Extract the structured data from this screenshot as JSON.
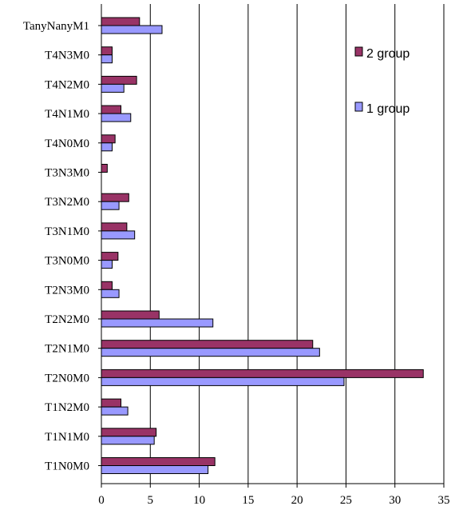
{
  "chart_data": {
    "type": "bar",
    "orientation": "horizontal",
    "categories": [
      "TanyNanyM1",
      "T4N3M0",
      "T4N2M0",
      "T4N1M0",
      "T4N0M0",
      "T3N3M0",
      "T3N2M0",
      "T3N1M0",
      "T3N0M0",
      "T2N3M0",
      "T2N2M0",
      "T2N1M0",
      "T2N0M0",
      "T1N2M0",
      "T1N1M0",
      "T1N0M0"
    ],
    "series": [
      {
        "name": "2 group",
        "color": "#993366",
        "values": [
          3.9,
          1.1,
          3.6,
          2.0,
          1.4,
          0.6,
          2.8,
          2.6,
          1.7,
          1.1,
          5.9,
          21.6,
          32.9,
          2.0,
          5.6,
          11.6
        ]
      },
      {
        "name": "1 group",
        "color": "#9999ff",
        "values": [
          6.2,
          1.1,
          2.3,
          3.0,
          1.1,
          0,
          1.8,
          3.4,
          1.1,
          1.8,
          11.4,
          22.3,
          24.8,
          2.7,
          5.4,
          10.9
        ]
      }
    ],
    "xlim": [
      0,
      35
    ],
    "xticks": [
      "0",
      "5",
      "10",
      "15",
      "20",
      "25",
      "30",
      "35"
    ],
    "grid": "vertical",
    "legend_position": "right",
    "title": "",
    "xlabel": "",
    "ylabel": ""
  }
}
